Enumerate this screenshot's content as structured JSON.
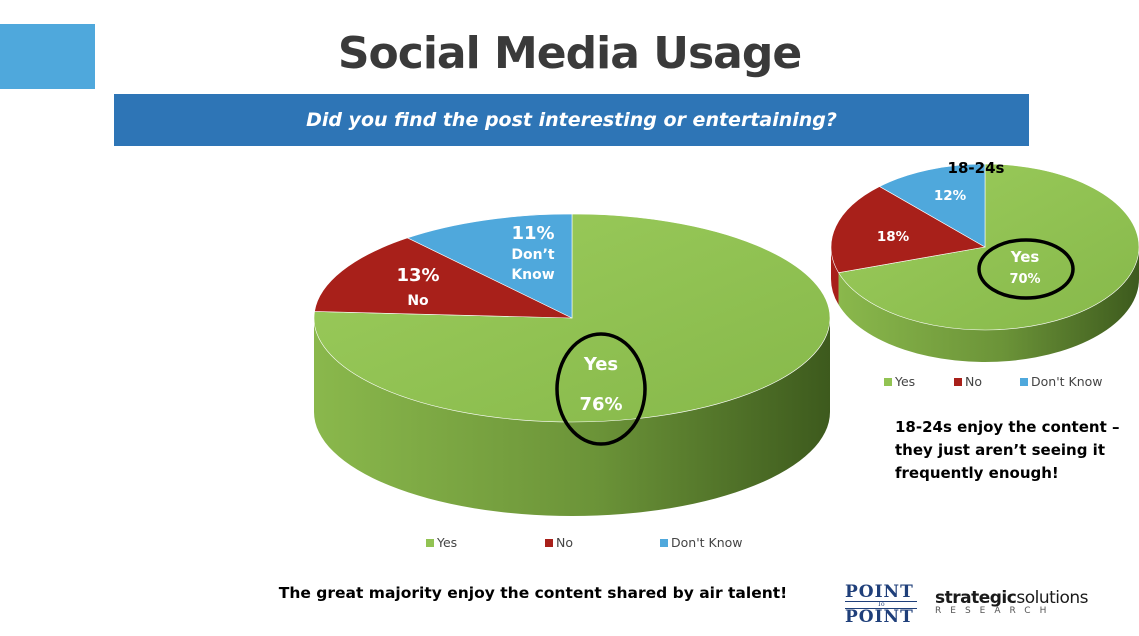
{
  "slide": {
    "title": "Social Media Usage",
    "question": "Did you find the post interesting or entertaining?",
    "main_note": "The great majority enjoy the content shared by air talent!",
    "side_note": "18-24s enjoy the content – they just aren’t seeing it frequently enough!",
    "logo_point_to_point": {
      "top": "POINT",
      "middle": "To",
      "bottom": "POINT"
    },
    "logo_strategic": {
      "name_bold": "strategic",
      "name_regular": "solutions",
      "sub": "RESEARCH"
    }
  },
  "colors": {
    "accent_block": "#4fa8dc",
    "question_bar": "#2e75b6",
    "yes": "#92c353",
    "no": "#a8201a",
    "dont_know": "#4fa8dc"
  },
  "chart_data": [
    {
      "type": "pie",
      "style": "3d",
      "title": "",
      "categories": [
        "Yes",
        "No",
        "Don't Know"
      ],
      "values": [
        76,
        13,
        11
      ],
      "slice_labels": [
        {
          "line1": "Yes",
          "line2": "76%"
        },
        {
          "line1": "13%",
          "line2": "No"
        },
        {
          "line1": "11%",
          "line2": "Don’t Know"
        }
      ],
      "legend": [
        "Yes",
        "No",
        "Don't Know"
      ],
      "legend_position": "bottom",
      "highlight": "Yes"
    },
    {
      "type": "pie",
      "style": "3d",
      "title": "18-24s",
      "categories": [
        "Yes",
        "No",
        "Don't Know"
      ],
      "values": [
        70,
        18,
        12
      ],
      "slice_labels": [
        {
          "line1": "Yes",
          "line2": "70%"
        },
        {
          "line1": "18%",
          "line2": ""
        },
        {
          "line1": "12%",
          "line2": ""
        }
      ],
      "legend": [
        "Yes",
        "No",
        "Don't Know"
      ],
      "legend_position": "bottom",
      "highlight": "Yes"
    }
  ]
}
